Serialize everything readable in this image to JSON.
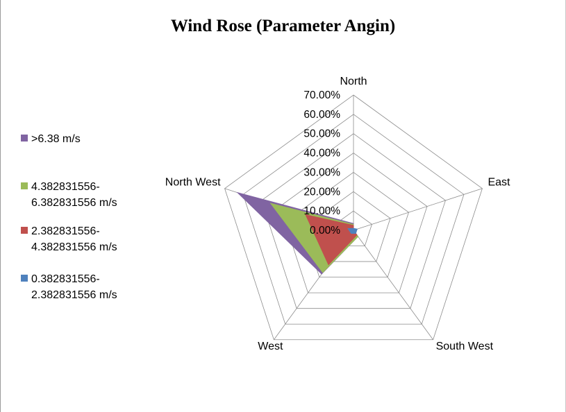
{
  "chart_data": {
    "type": "radar",
    "title": "Wind Rose (Parameter Angin)",
    "axes": [
      "North",
      "East",
      "South West",
      "West",
      "North West"
    ],
    "ticks": [
      "0.00%",
      "10.00%",
      "20.00%",
      "30.00%",
      "40.00%",
      "50.00%",
      "60.00%",
      "70.00%"
    ],
    "rmax": 70,
    "legend_position": "left",
    "series": [
      {
        "name": ">6.38 m/s",
        "color": "#8064a2",
        "values": [
          3.5,
          0,
          4,
          28,
          63
        ]
      },
      {
        "name": "4.382831556-\n6.382831556 m/s",
        "color": "#9bbb59",
        "values": [
          3,
          0,
          4,
          27,
          45
        ]
      },
      {
        "name": "2.382831556-\n4.382831556 m/s",
        "color": "#c0504d",
        "values": [
          2.5,
          0,
          3,
          22,
          26
        ]
      },
      {
        "name": "0.382831556-\n2.382831556 m/s",
        "color": "#4f81bd",
        "values": [
          1,
          2,
          2,
          2,
          3
        ]
      }
    ]
  }
}
